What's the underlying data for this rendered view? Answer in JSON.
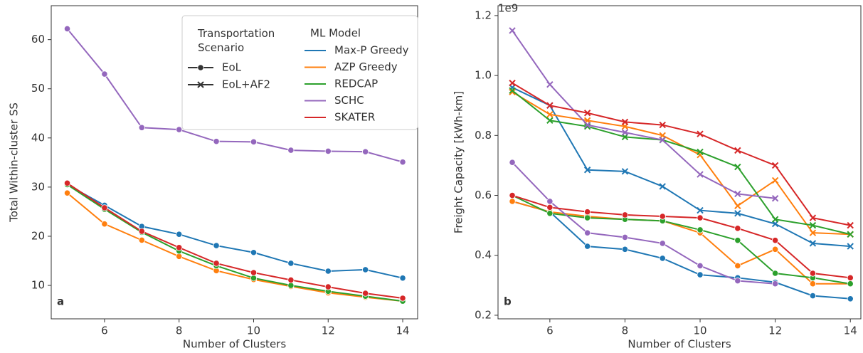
{
  "chart_data": [
    {
      "type": "line",
      "panel_label": "a",
      "xlabel": "Number of Clusters",
      "ylabel": "Total Within-cluster SS",
      "x": [
        5,
        6,
        7,
        8,
        9,
        10,
        11,
        12,
        13,
        14
      ],
      "xlim": [
        4.57,
        14.4
      ],
      "xticks": [
        6,
        8,
        10,
        12,
        14
      ],
      "ylim": [
        3.2,
        66.9
      ],
      "yticks": [
        10,
        20,
        30,
        40,
        50,
        60
      ],
      "grid": false,
      "legend_scenario_title": "Transportation Scenario",
      "legend_model_title": "ML Model",
      "scenarios": [
        {
          "name": "EoL",
          "marker": "circle"
        },
        {
          "name": "EoL+AF2",
          "marker": "x"
        }
      ],
      "series": [
        {
          "name": "Max-P Greedy",
          "color": "#1f77b4",
          "marker": "circle",
          "values": [
            30.5,
            26.3,
            22,
            20.4,
            18.1,
            16.7,
            14.5,
            12.9,
            13.2,
            11.5
          ]
        },
        {
          "name": "AZP Greedy",
          "color": "#ff7f0e",
          "marker": "circle",
          "values": [
            28.8,
            22.5,
            19.2,
            15.9,
            13.0,
            11.2,
            9.8,
            8.5,
            7.6,
            6.8
          ]
        },
        {
          "name": "REDCAP",
          "color": "#2ca02c",
          "marker": "circle",
          "values": [
            30.5,
            25.5,
            20.8,
            17.0,
            14.0,
            11.5,
            10.0,
            8.8,
            7.8,
            6.8
          ]
        },
        {
          "name": "SCHC",
          "color": "#9467bd",
          "marker": "circle",
          "values": [
            62.2,
            53.0,
            42.1,
            41.7,
            39.3,
            39.2,
            37.5,
            37.3,
            37.2,
            35.1
          ]
        },
        {
          "name": "SKATER",
          "color": "#d62728",
          "marker": "circle",
          "values": [
            30.8,
            25.8,
            21.0,
            17.7,
            14.5,
            12.6,
            11.1,
            9.7,
            8.4,
            7.4
          ]
        }
      ]
    },
    {
      "type": "line",
      "panel_label": "b",
      "xlabel": "Number of Clusters",
      "ylabel": "Freight Capacity [kWh-km]",
      "offset_label": "1e9",
      "x": [
        5,
        6,
        7,
        8,
        9,
        10,
        11,
        12,
        13,
        14
      ],
      "xlim": [
        4.62,
        14.28
      ],
      "xticks": [
        6,
        8,
        10,
        12,
        14
      ],
      "ylim": [
        0.188,
        1.233
      ],
      "yticks": [
        0.2,
        0.4,
        0.6,
        0.8,
        {
          "value": 1.0,
          "label": "1.0"
        },
        1.2
      ],
      "grid": false,
      "series": [
        {
          "color": "#1f77b4",
          "marker": "x",
          "values": [
            0.96,
            0.9,
            0.685,
            0.68,
            0.63,
            0.55,
            0.54,
            0.505,
            0.44,
            0.43
          ]
        },
        {
          "color": "#ff7f0e",
          "marker": "x",
          "values": [
            0.945,
            0.87,
            0.85,
            0.83,
            0.8,
            0.735,
            0.565,
            0.65,
            0.475,
            0.47
          ]
        },
        {
          "color": "#2ca02c",
          "marker": "x",
          "values": [
            0.95,
            0.85,
            0.83,
            0.795,
            0.785,
            0.745,
            0.695,
            0.52,
            0.5,
            0.47
          ]
        },
        {
          "color": "#9467bd",
          "marker": "x",
          "values": [
            1.15,
            0.97,
            0.835,
            0.81,
            0.785,
            0.67,
            0.605,
            0.59,
            null,
            null
          ]
        },
        {
          "color": "#d62728",
          "marker": "x",
          "values": [
            0.975,
            0.9,
            0.875,
            0.845,
            0.835,
            0.805,
            0.75,
            0.7,
            0.525,
            0.5
          ]
        },
        {
          "color": "#1f77b4",
          "marker": "circle",
          "values": [
            0.58,
            0.545,
            0.43,
            0.42,
            0.39,
            0.335,
            0.325,
            0.31,
            0.265,
            0.255
          ]
        },
        {
          "color": "#ff7f0e",
          "marker": "circle",
          "values": [
            0.58,
            0.545,
            0.53,
            0.52,
            0.515,
            0.475,
            0.365,
            0.42,
            0.305,
            0.305
          ]
        },
        {
          "color": "#2ca02c",
          "marker": "circle",
          "values": [
            0.6,
            0.54,
            0.525,
            0.52,
            0.515,
            0.485,
            0.45,
            0.34,
            0.325,
            0.305
          ]
        },
        {
          "color": "#9467bd",
          "marker": "circle",
          "values": [
            0.71,
            0.58,
            0.475,
            0.46,
            0.44,
            0.365,
            0.315,
            0.305,
            null,
            null
          ]
        },
        {
          "color": "#d62728",
          "marker": "circle",
          "values": [
            0.6,
            0.56,
            0.545,
            0.535,
            0.53,
            0.525,
            0.49,
            0.45,
            0.34,
            0.325
          ]
        }
      ]
    }
  ]
}
